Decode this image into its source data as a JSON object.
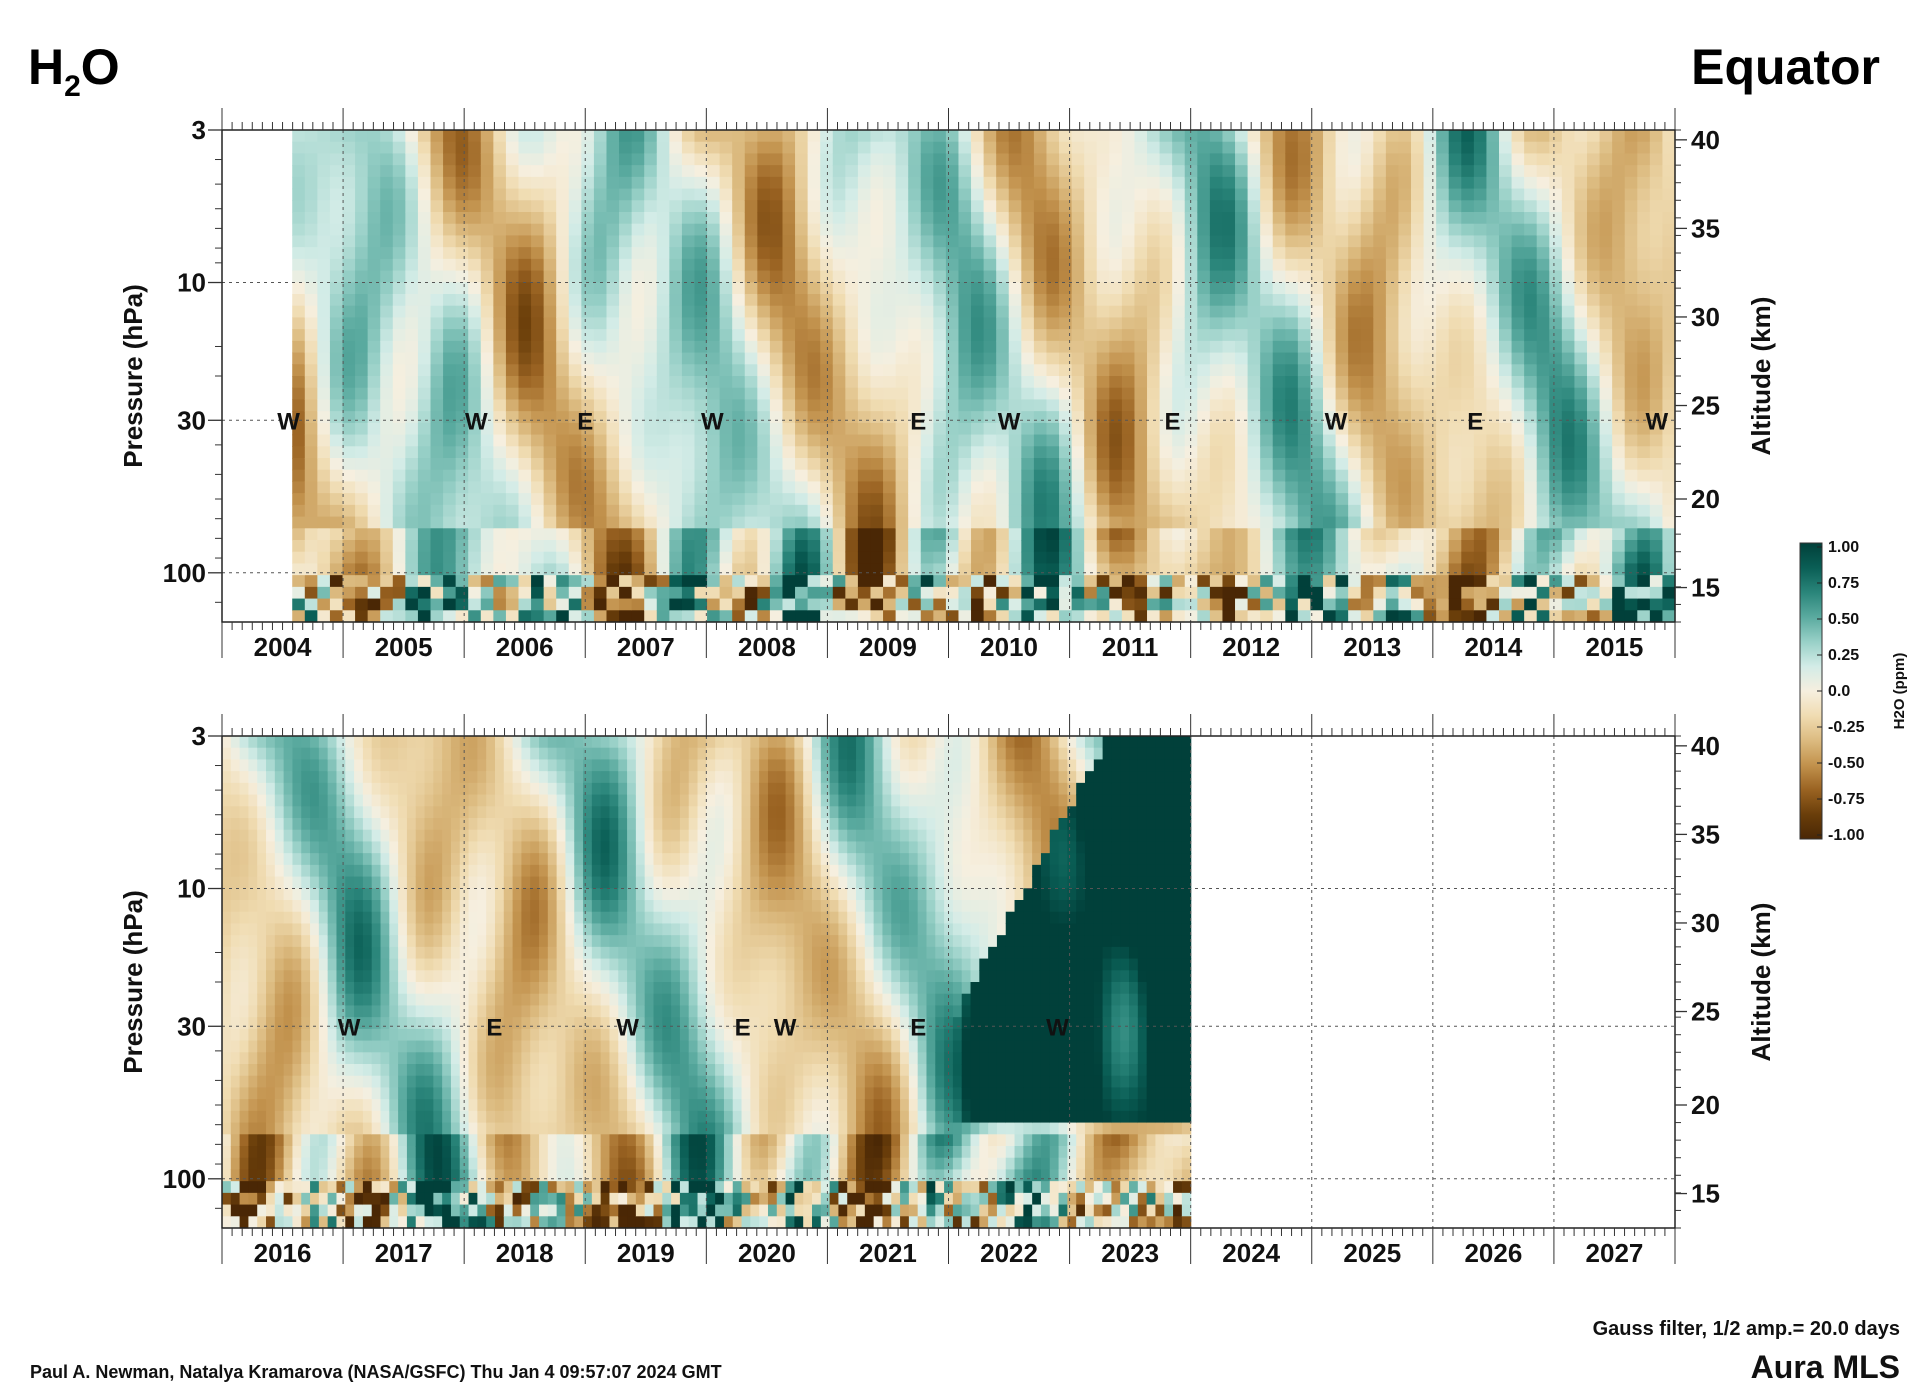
{
  "header": {
    "species_main": "H",
    "species_sub": "2",
    "species_tail": "O",
    "region": "Equator"
  },
  "footer": {
    "credit": "Paul A. Newman, Natalya Kramarova (NASA/GSFC) Thu Jan  4 09:57:07 2024 GMT",
    "filter_note": "Gauss filter, 1/2 amp.= 20.0 days",
    "instrument": "Aura MLS"
  },
  "colorbar": {
    "label": "H2O (ppm)",
    "ticks": [
      "1.00",
      "0.75",
      "0.50",
      "0.25",
      "0.0",
      "-0.25",
      "-0.50",
      "-0.75",
      "-1.00"
    ],
    "colors": [
      "#01403a",
      "#0a5e55",
      "#2a857a",
      "#5aaa9f",
      "#98d0c7",
      "#d3ece7",
      "#f6efdf",
      "#f0dcb2",
      "#dcbb80",
      "#c2924d",
      "#9a6322",
      "#6a3e0a",
      "#4a2705"
    ]
  },
  "chart_data": [
    {
      "type": "heatmap",
      "panel": "top",
      "ylabel_left": "Pressure (hPa)",
      "ylabel_right": "Altitude (km)",
      "pressure_ticks": [
        "3",
        "10",
        "30",
        "100"
      ],
      "altitude_ticks": [
        "40",
        "35",
        "30",
        "25",
        "20",
        "15"
      ],
      "year_labels": [
        "2004",
        "2005",
        "2006",
        "2007",
        "2008",
        "2009",
        "2010",
        "2011",
        "2012",
        "2013",
        "2014",
        "2015"
      ],
      "data_start": 2004.58,
      "data_end": 2016.0,
      "qbo_markers": [
        {
          "label": "W",
          "year": 2004.55
        },
        {
          "label": "W",
          "year": 2006.1
        },
        {
          "label": "E",
          "year": 2007.0
        },
        {
          "label": "W",
          "year": 2008.05
        },
        {
          "label": "E",
          "year": 2009.75
        },
        {
          "label": "W",
          "year": 2010.5
        },
        {
          "label": "E",
          "year": 2011.85
        },
        {
          "label": "W",
          "year": 2013.2
        },
        {
          "label": "E",
          "year": 2014.35
        },
        {
          "label": "W",
          "year": 2015.85
        }
      ]
    },
    {
      "type": "heatmap",
      "panel": "bottom",
      "ylabel_left": "Pressure (hPa)",
      "ylabel_right": "Altitude (km)",
      "pressure_ticks": [
        "3",
        "10",
        "30",
        "100"
      ],
      "altitude_ticks": [
        "40",
        "35",
        "30",
        "25",
        "20",
        "15"
      ],
      "year_labels": [
        "2016",
        "2017",
        "2018",
        "2019",
        "2020",
        "2021",
        "2022",
        "2023",
        "2024",
        "2025",
        "2026",
        "2027"
      ],
      "data_start": 2016.0,
      "data_end": 2024.0,
      "qbo_markers": [
        {
          "label": "W",
          "year": 2017.05
        },
        {
          "label": "E",
          "year": 2018.25
        },
        {
          "label": "W",
          "year": 2019.35
        },
        {
          "label": "E",
          "year": 2020.3
        },
        {
          "label": "W",
          "year": 2020.65
        },
        {
          "label": "E",
          "year": 2021.75
        },
        {
          "label": "W",
          "year": 2022.9
        }
      ]
    }
  ]
}
